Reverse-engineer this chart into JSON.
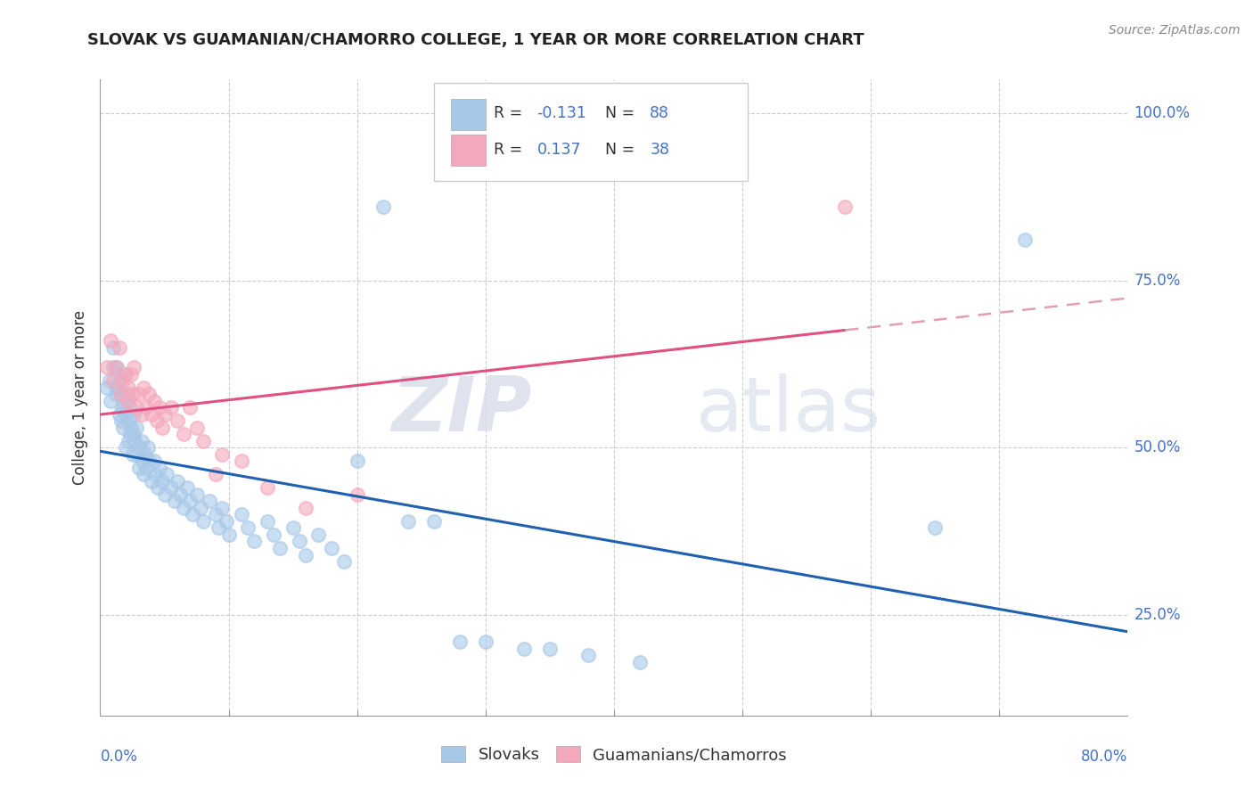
{
  "title": "SLOVAK VS GUAMANIAN/CHAMORRO COLLEGE, 1 YEAR OR MORE CORRELATION CHART",
  "source_text": "Source: ZipAtlas.com",
  "ylabel": "College, 1 year or more",
  "legend_labels": [
    "Slovaks",
    "Guamanians/Chamorros"
  ],
  "r_slovak": -0.131,
  "n_slovak": 88,
  "r_guam": 0.137,
  "n_guam": 38,
  "xlim": [
    0.0,
    0.8
  ],
  "ylim": [
    0.1,
    1.05
  ],
  "x_corner_labels": [
    "0.0%",
    "80.0%"
  ],
  "ytick_positions": [
    0.25,
    0.5,
    0.75,
    1.0
  ],
  "ytick_labels": [
    "25.0%",
    "50.0%",
    "75.0%",
    "100.0%"
  ],
  "minor_xtick_positions": [
    0.1,
    0.2,
    0.3,
    0.4,
    0.5,
    0.6,
    0.7
  ],
  "blue_color": "#a8c8e8",
  "pink_color": "#f4a8bc",
  "blue_line_color": "#2060b0",
  "pink_line_color": "#e05080",
  "pink_line_dash_color": "#e0a0b0",
  "watermark_zip": "ZIP",
  "watermark_atlas": "atlas",
  "background_color": "#ffffff",
  "grid_color": "#cccccc",
  "tick_color": "#4472c4",
  "slovak_x": [
    0.005,
    0.007,
    0.008,
    0.01,
    0.01,
    0.012,
    0.013,
    0.013,
    0.015,
    0.015,
    0.016,
    0.016,
    0.017,
    0.018,
    0.018,
    0.019,
    0.02,
    0.02,
    0.021,
    0.022,
    0.022,
    0.023,
    0.023,
    0.024,
    0.025,
    0.026,
    0.026,
    0.027,
    0.028,
    0.029,
    0.03,
    0.031,
    0.032,
    0.033,
    0.034,
    0.035,
    0.036,
    0.037,
    0.038,
    0.04,
    0.042,
    0.043,
    0.045,
    0.046,
    0.048,
    0.05,
    0.052,
    0.055,
    0.058,
    0.06,
    0.062,
    0.065,
    0.068,
    0.07,
    0.072,
    0.075,
    0.078,
    0.08,
    0.085,
    0.09,
    0.092,
    0.095,
    0.098,
    0.1,
    0.11,
    0.115,
    0.12,
    0.13,
    0.135,
    0.14,
    0.15,
    0.155,
    0.16,
    0.17,
    0.18,
    0.19,
    0.2,
    0.22,
    0.24,
    0.26,
    0.28,
    0.3,
    0.33,
    0.35,
    0.38,
    0.42,
    0.65,
    0.72
  ],
  "slovak_y": [
    0.59,
    0.6,
    0.57,
    0.62,
    0.65,
    0.58,
    0.59,
    0.62,
    0.55,
    0.6,
    0.54,
    0.58,
    0.56,
    0.53,
    0.57,
    0.61,
    0.5,
    0.55,
    0.58,
    0.51,
    0.54,
    0.52,
    0.56,
    0.53,
    0.49,
    0.52,
    0.55,
    0.51,
    0.53,
    0.49,
    0.47,
    0.5,
    0.51,
    0.48,
    0.46,
    0.49,
    0.47,
    0.5,
    0.48,
    0.45,
    0.48,
    0.46,
    0.44,
    0.47,
    0.45,
    0.43,
    0.46,
    0.44,
    0.42,
    0.45,
    0.43,
    0.41,
    0.44,
    0.42,
    0.4,
    0.43,
    0.41,
    0.39,
    0.42,
    0.4,
    0.38,
    0.41,
    0.39,
    0.37,
    0.4,
    0.38,
    0.36,
    0.39,
    0.37,
    0.35,
    0.38,
    0.36,
    0.34,
    0.37,
    0.35,
    0.33,
    0.48,
    0.86,
    0.39,
    0.39,
    0.21,
    0.21,
    0.2,
    0.2,
    0.19,
    0.18,
    0.38,
    0.81
  ],
  "guam_x": [
    0.005,
    0.008,
    0.01,
    0.012,
    0.015,
    0.016,
    0.018,
    0.02,
    0.021,
    0.022,
    0.024,
    0.025,
    0.026,
    0.028,
    0.03,
    0.032,
    0.034,
    0.036,
    0.038,
    0.04,
    0.042,
    0.044,
    0.046,
    0.048,
    0.05,
    0.055,
    0.06,
    0.065,
    0.07,
    0.075,
    0.08,
    0.09,
    0.095,
    0.11,
    0.13,
    0.16,
    0.2,
    0.58
  ],
  "guam_y": [
    0.62,
    0.66,
    0.6,
    0.62,
    0.65,
    0.58,
    0.6,
    0.61,
    0.57,
    0.59,
    0.61,
    0.58,
    0.62,
    0.56,
    0.58,
    0.55,
    0.59,
    0.56,
    0.58,
    0.55,
    0.57,
    0.54,
    0.56,
    0.53,
    0.55,
    0.56,
    0.54,
    0.52,
    0.56,
    0.53,
    0.51,
    0.46,
    0.49,
    0.48,
    0.44,
    0.41,
    0.43,
    0.86
  ]
}
